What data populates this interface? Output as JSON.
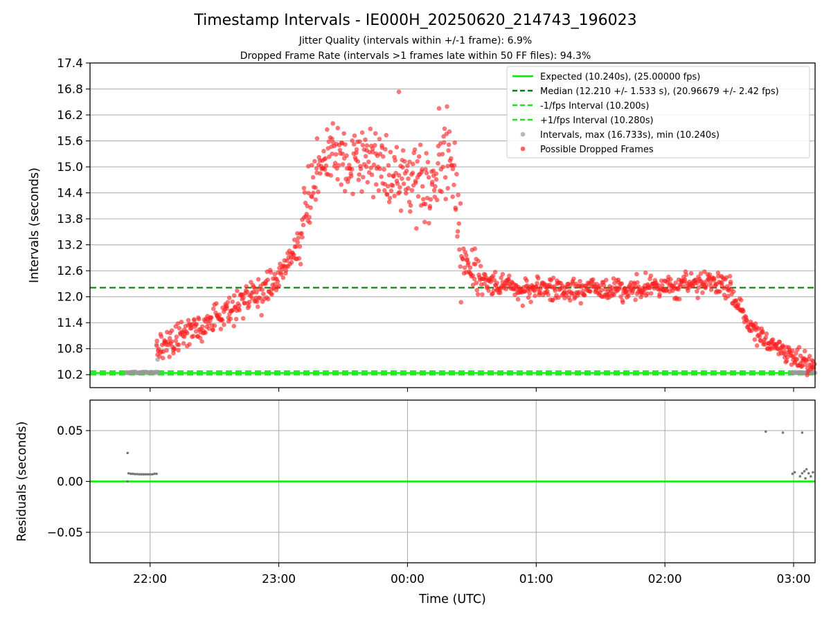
{
  "title": "Timestamp Intervals - IE000H_20250620_214743_196023",
  "subtitle_1": "Jitter Quality (intervals within +/-1 frame): 6.9%",
  "subtitle_2": "Dropped Frame Rate (intervals >1 frames late within 50 FF files): 94.3%",
  "colors": {
    "expected": "#00ee00",
    "median": "#008000",
    "interval_band": "#22dd22",
    "intervals": "#999999",
    "dropped": "#ff2020",
    "residuals": "#777777",
    "grid": "#b0b0b0"
  },
  "chart_data": [
    {
      "type": "scatter",
      "panel": "top",
      "ylabel": "Intervals (seconds)",
      "ylim": [
        9.9,
        17.4
      ],
      "yticks": [
        10.2,
        10.8,
        11.4,
        12.0,
        12.6,
        13.2,
        13.8,
        14.4,
        15.0,
        15.6,
        16.2,
        16.8,
        17.4
      ],
      "ytick_labels": [
        "10.2",
        "10.8",
        "11.4",
        "12.0",
        "12.6",
        "13.2",
        "13.8",
        "14.4",
        "15.0",
        "15.6",
        "16.2",
        "16.8",
        "17.4"
      ],
      "xlim": [
        "21:32 UTC",
        "03:10 UTC"
      ],
      "grid": "y",
      "legend_position": "top-right",
      "reference_lines": [
        {
          "name": "Expected (10.240s), (25.00000 fps)",
          "y": 10.24,
          "style": "solid"
        },
        {
          "name": "Median (12.210 +/- 1.533 s), (20.96679 +/- 2.42 fps)",
          "y": 12.21,
          "style": "dashed"
        },
        {
          "name": "-1/fps Interval (10.200s)",
          "y": 10.2,
          "style": "dashed"
        },
        {
          "name": "+1/fps Interval (10.280s)",
          "y": 10.28,
          "style": "dashed"
        }
      ],
      "series": [
        {
          "name": "Intervals, max (16.733s), min (10.240s)",
          "description": "all intervals (grey); near 10.24 s from 21:49 to 22:04 and 02:59 to 03:10, rising to 16.733 s around midnight"
        },
        {
          "name": "Possible Dropped Frames",
          "trend_points": [
            {
              "x": "22:03",
              "y": 10.75
            },
            {
              "x": "22:15",
              "y": 11.1
            },
            {
              "x": "22:30",
              "y": 11.5
            },
            {
              "x": "22:45",
              "y": 11.9
            },
            {
              "x": "22:55",
              "y": 12.2
            },
            {
              "x": "23:00",
              "y": 12.5
            },
            {
              "x": "23:10",
              "y": 13.3
            },
            {
              "x": "23:15",
              "y": 14.6
            },
            {
              "x": "23:20",
              "y": 15.2
            },
            {
              "x": "23:30",
              "y": 15.3
            },
            {
              "x": "23:40",
              "y": 15.1
            },
            {
              "x": "23:50",
              "y": 14.9
            },
            {
              "x": "00:00",
              "y": 14.6
            },
            {
              "x": "00:10",
              "y": 14.4
            },
            {
              "x": "00:20",
              "y": 15.6
            },
            {
              "x": "00:25",
              "y": 12.9
            },
            {
              "x": "00:35",
              "y": 12.4
            },
            {
              "x": "00:50",
              "y": 12.2
            },
            {
              "x": "01:30",
              "y": 12.15
            },
            {
              "x": "02:00",
              "y": 12.2
            },
            {
              "x": "02:20",
              "y": 12.35
            },
            {
              "x": "02:30",
              "y": 12.2
            },
            {
              "x": "02:40",
              "y": 11.3
            },
            {
              "x": "02:50",
              "y": 10.9
            },
            {
              "x": "03:00",
              "y": 10.6
            },
            {
              "x": "03:10",
              "y": 10.45
            }
          ]
        }
      ]
    },
    {
      "type": "scatter",
      "panel": "bottom",
      "xlabel": "Time (UTC)",
      "ylabel": "Residuals (seconds)",
      "ylim": [
        -0.08,
        0.08
      ],
      "yticks": [
        -0.05,
        0.0,
        0.05
      ],
      "ytick_labels": [
        "−0.05",
        "0.00",
        "0.05"
      ],
      "xticks": [
        "22:00",
        "23:00",
        "00:00",
        "01:00",
        "02:00",
        "03:00"
      ],
      "xlim": [
        "21:32 UTC",
        "03:10 UTC"
      ],
      "grid": "both",
      "zero_line": 0.0,
      "series": [
        {
          "name": "Residuals",
          "points": [
            {
              "x": "21:49.5",
              "y": 0.028
            },
            {
              "x": "21:49.5",
              "y": 0.0
            },
            {
              "x": "21:50",
              "y": 0.008
            },
            {
              "x": "21:51",
              "y": 0.0075
            },
            {
              "x": "21:52",
              "y": 0.0075
            },
            {
              "x": "21:53",
              "y": 0.0072
            },
            {
              "x": "21:54",
              "y": 0.0072
            },
            {
              "x": "21:55",
              "y": 0.007
            },
            {
              "x": "21:56",
              "y": 0.007
            },
            {
              "x": "21:57",
              "y": 0.007
            },
            {
              "x": "21:58",
              "y": 0.007
            },
            {
              "x": "21:59",
              "y": 0.007
            },
            {
              "x": "22:00",
              "y": 0.007
            },
            {
              "x": "22:01",
              "y": 0.007
            },
            {
              "x": "22:02",
              "y": 0.0075
            },
            {
              "x": "22:03",
              "y": 0.0075
            },
            {
              "x": "02:47",
              "y": 0.049
            },
            {
              "x": "02:55",
              "y": 0.048
            },
            {
              "x": "03:04",
              "y": 0.048
            },
            {
              "x": "02:59.5",
              "y": 0.0075
            },
            {
              "x": "03:00.5",
              "y": 0.009
            },
            {
              "x": "03:03",
              "y": 0.005
            },
            {
              "x": "03:04",
              "y": 0.008
            },
            {
              "x": "03:05",
              "y": 0.01
            },
            {
              "x": "03:05.5",
              "y": 0.003
            },
            {
              "x": "03:06",
              "y": 0.012
            },
            {
              "x": "03:07",
              "y": 0.008
            },
            {
              "x": "03:08",
              "y": 0.005
            },
            {
              "x": "03:09",
              "y": 0.009
            }
          ]
        }
      ]
    }
  ]
}
